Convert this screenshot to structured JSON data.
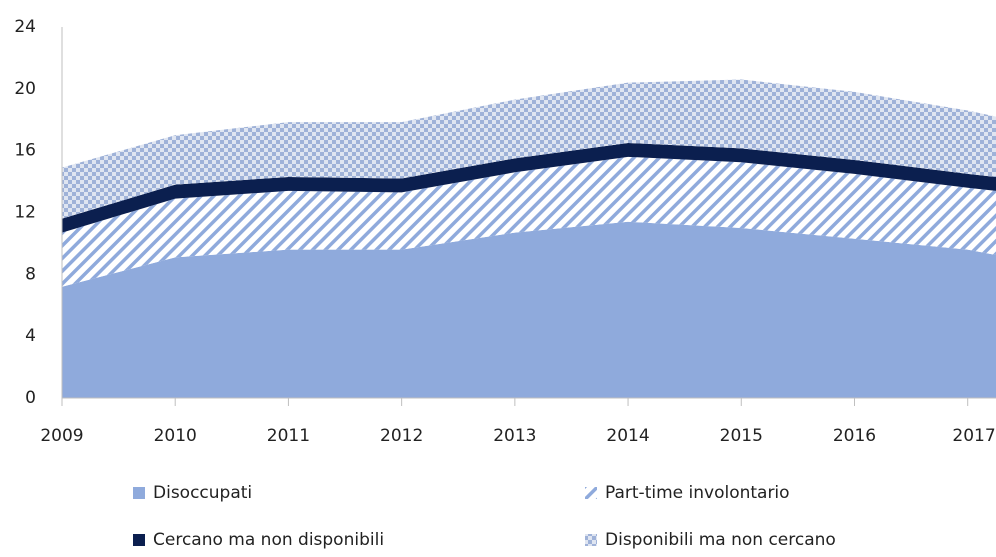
{
  "chart_data": {
    "type": "stacked-area",
    "x": [
      2009,
      2010,
      2011,
      2012,
      2013,
      2014,
      2015,
      2016,
      2017,
      2017.25
    ],
    "xlim": [
      2009,
      2017.25
    ],
    "xticks": [
      2009,
      2010,
      2011,
      2012,
      2013,
      2014,
      2015,
      2016,
      2017
    ],
    "ylim": [
      0,
      24
    ],
    "yticks": [
      0,
      4,
      8,
      12,
      16,
      20,
      24
    ],
    "series": [
      {
        "name": "Disoccupati",
        "color": "#8faadc",
        "fill": "solid",
        "values": [
          7.2,
          9.1,
          9.6,
          9.6,
          10.7,
          11.4,
          11.0,
          10.3,
          9.6,
          9.25
        ]
      },
      {
        "name": "Part-time involontario",
        "color": "#8faadc",
        "fill": "hatch",
        "values": [
          3.5,
          3.8,
          3.8,
          3.7,
          3.9,
          4.2,
          4.25,
          4.2,
          4.0,
          4.15
        ]
      },
      {
        "name": "Cercano ma non disponibili",
        "color": "#0b1f4f",
        "fill": "solid",
        "values": [
          0.9,
          0.9,
          0.9,
          0.9,
          0.9,
          0.9,
          0.9,
          0.9,
          0.9,
          0.9
        ]
      },
      {
        "name": "Disponibili ma non cercano",
        "color": "#9fb2d8",
        "fill": "checker",
        "values": [
          3.3,
          3.2,
          3.55,
          3.65,
          3.8,
          3.9,
          4.45,
          4.4,
          4.1,
          3.9
        ]
      }
    ]
  }
}
